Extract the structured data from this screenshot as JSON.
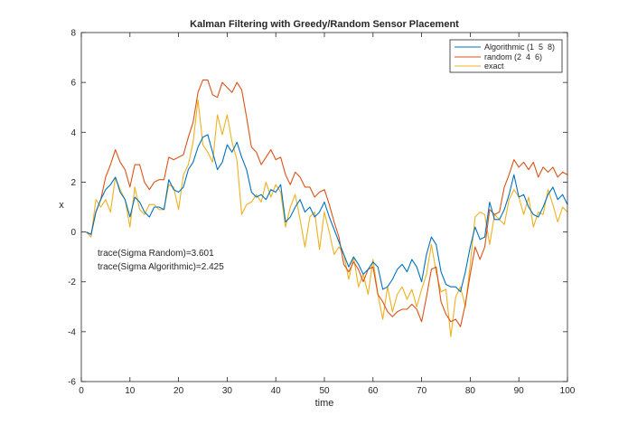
{
  "chart_data": {
    "type": "line",
    "title": "Kalman Filtering with Greedy/Random Sensor Placement",
    "xlabel": "time",
    "ylabel": "x",
    "xlim": [
      0,
      100
    ],
    "ylim": [
      -6,
      8
    ],
    "xticks": [
      0,
      10,
      20,
      30,
      40,
      50,
      60,
      70,
      80,
      90,
      100
    ],
    "yticks": [
      -6,
      -4,
      -2,
      0,
      2,
      4,
      6,
      8
    ],
    "grid": false,
    "legend_position": "top-right",
    "annotations": [
      "trace(Sigma Random)=3.601",
      "trace(Sigma Algorithmic)=2.425"
    ],
    "x": [
      1,
      2,
      3,
      4,
      5,
      6,
      7,
      8,
      9,
      10,
      11,
      12,
      13,
      14,
      15,
      16,
      17,
      18,
      19,
      20,
      21,
      22,
      23,
      24,
      25,
      26,
      27,
      28,
      29,
      30,
      31,
      32,
      33,
      34,
      35,
      36,
      37,
      38,
      39,
      40,
      41,
      42,
      43,
      44,
      45,
      46,
      47,
      48,
      49,
      50,
      51,
      52,
      53,
      54,
      55,
      56,
      57,
      58,
      59,
      60,
      61,
      62,
      63,
      64,
      65,
      66,
      67,
      68,
      69,
      70,
      71,
      72,
      73,
      74,
      75,
      76,
      77,
      78,
      79,
      80,
      81,
      82,
      83,
      84,
      85,
      86,
      87,
      88,
      89,
      90,
      91,
      92,
      93,
      94,
      95,
      96,
      97,
      98,
      99,
      100
    ],
    "series": [
      {
        "name": "Algorithmic (1  5  8)",
        "color": "#0072BD",
        "values": [
          0.0,
          -0.1,
          0.8,
          1.3,
          1.7,
          1.9,
          2.2,
          1.6,
          1.3,
          0.6,
          1.4,
          1.2,
          0.8,
          0.6,
          1.0,
          1.0,
          0.9,
          2.1,
          1.7,
          1.6,
          1.8,
          2.5,
          2.8,
          3.4,
          3.8,
          3.9,
          3.2,
          2.5,
          2.8,
          3.5,
          3.2,
          3.6,
          3.0,
          2.5,
          1.6,
          1.4,
          1.5,
          1.3,
          1.7,
          1.6,
          1.9,
          0.4,
          0.6,
          1.0,
          1.3,
          0.8,
          1.0,
          0.6,
          0.8,
          1.2,
          0.6,
          0.1,
          -0.4,
          -0.9,
          -1.4,
          -1.0,
          -1.3,
          -1.7,
          -1.5,
          -1.2,
          -1.4,
          -2.3,
          -2.2,
          -1.9,
          -1.5,
          -1.3,
          -1.6,
          -1.1,
          -1.4,
          -2.0,
          -0.9,
          -0.2,
          -0.5,
          -1.6,
          -2.1,
          -2.2,
          -2.2,
          -2.4,
          -1.6,
          -0.6,
          0.2,
          -0.3,
          -0.2,
          1.2,
          0.5,
          0.5,
          0.9,
          1.5,
          2.3,
          1.4,
          1.5,
          1.0,
          0.7,
          0.6,
          1.0,
          1.5,
          1.8,
          1.3,
          1.5,
          1.1
        ]
      },
      {
        "name": "random (2  4  6)",
        "color": "#D95319",
        "values": [
          0.0,
          -0.1,
          0.8,
          1.3,
          2.2,
          2.7,
          3.3,
          2.8,
          2.5,
          1.8,
          2.7,
          2.7,
          2.0,
          1.7,
          2.0,
          2.1,
          2.1,
          3.0,
          2.9,
          3.0,
          3.1,
          3.8,
          4.4,
          5.6,
          6.1,
          6.1,
          5.5,
          5.4,
          6.0,
          5.8,
          5.6,
          6.0,
          5.7,
          4.6,
          3.4,
          3.2,
          2.7,
          3.0,
          3.3,
          2.9,
          3.0,
          2.3,
          1.9,
          2.4,
          2.2,
          1.8,
          1.8,
          1.4,
          1.6,
          1.7,
          1.1,
          0.4,
          -0.2,
          -1.3,
          -1.6,
          -1.2,
          -1.5,
          -2.0,
          -1.5,
          -1.4,
          -2.5,
          -2.8,
          -3.2,
          -3.4,
          -3.2,
          -3.1,
          -3.1,
          -2.9,
          -3.1,
          -3.6,
          -2.6,
          -1.5,
          -1.4,
          -2.8,
          -3.3,
          -3.6,
          -3.5,
          -3.8,
          -2.9,
          -1.7,
          -0.6,
          -1.1,
          -0.6,
          0.9,
          0.7,
          0.8,
          1.8,
          2.3,
          2.9,
          2.6,
          2.8,
          2.5,
          2.8,
          2.2,
          2.6,
          2.4,
          2.6,
          2.2,
          2.4,
          2.3
        ]
      },
      {
        "name": "exact",
        "color": "#EDB120",
        "values": [
          0.0,
          -0.2,
          1.3,
          1.0,
          1.3,
          0.8,
          2.2,
          1.7,
          1.3,
          0.2,
          1.8,
          0.9,
          0.7,
          1.1,
          1.1,
          0.9,
          0.9,
          1.9,
          1.8,
          0.9,
          2.3,
          2.7,
          3.6,
          5.3,
          3.5,
          3.2,
          2.8,
          4.7,
          3.9,
          4.7,
          3.6,
          2.9,
          0.7,
          1.1,
          1.2,
          1.5,
          1.2,
          2.0,
          1.4,
          1.9,
          1.6,
          0.2,
          1.0,
          1.5,
          0.5,
          -0.6,
          0.6,
          0.8,
          -0.7,
          0.8,
          0.0,
          -0.9,
          -0.6,
          -0.9,
          -1.9,
          -1.0,
          -2.2,
          -1.7,
          -2.5,
          -1.1,
          -2.5,
          -3.5,
          -2.2,
          -3.2,
          -2.5,
          -2.2,
          -2.7,
          -2.3,
          -3.0,
          -2.3,
          -1.7,
          -0.5,
          -1.6,
          -2.4,
          -2.3,
          -4.2,
          -2.6,
          -2.2,
          -3.0,
          -1.3,
          0.6,
          0.8,
          0.7,
          -0.5,
          0.7,
          0.5,
          0.3,
          1.3,
          1.7,
          1.4,
          0.7,
          1.4,
          0.2,
          0.8,
          0.7,
          1.7,
          1.1,
          0.4,
          1.0,
          0.8
        ]
      }
    ]
  }
}
